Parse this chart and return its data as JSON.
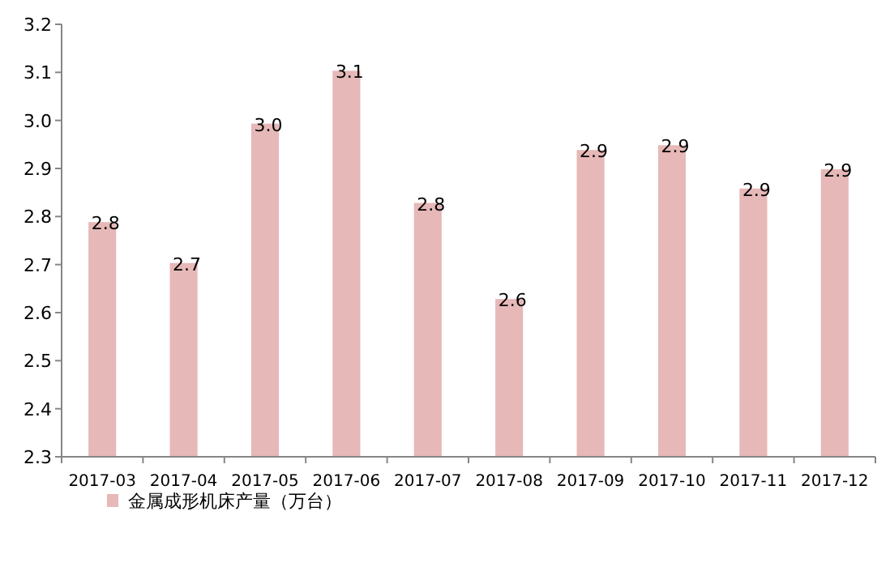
{
  "chart_data": {
    "type": "bar",
    "categories": [
      "2017-03",
      "2017-04",
      "2017-05",
      "2017-06",
      "2017-07",
      "2017-08",
      "2017-09",
      "2017-10",
      "2017-11",
      "2017-12"
    ],
    "series": [
      {
        "name": "金属成形机床产量（万台）",
        "color": "#e6b8b7",
        "values": [
          2.79,
          2.705,
          2.995,
          3.105,
          2.83,
          2.63,
          2.94,
          2.95,
          2.86,
          2.9
        ],
        "value_labels": [
          "2.8",
          "2.7",
          "3.0",
          "3.1",
          "2.8",
          "2.6",
          "2.9",
          "2.9",
          "2.9",
          "2.9"
        ]
      }
    ],
    "ylim": [
      2.3,
      3.2
    ],
    "yticks": [
      {
        "value": 2.3,
        "label": "2.3"
      },
      {
        "value": 2.4,
        "label": "2.4"
      },
      {
        "value": 2.5,
        "label": "2.5"
      },
      {
        "value": 2.6,
        "label": "2.6"
      },
      {
        "value": 2.7,
        "label": "2.7"
      },
      {
        "value": 2.8,
        "label": "2.8"
      },
      {
        "value": 2.9,
        "label": "2.9"
      },
      {
        "value": 3.0,
        "label": "3.0"
      },
      {
        "value": 3.1,
        "label": "3.1"
      },
      {
        "value": 3.2,
        "label": "3.2"
      }
    ],
    "legend": "bottom left",
    "grid": false
  }
}
